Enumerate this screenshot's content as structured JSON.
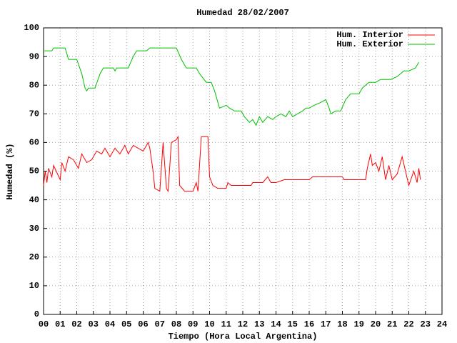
{
  "chart_data": {
    "type": "line",
    "title": "Humedad 28/02/2007",
    "x_label": "Tiempo (Hora Local Argentina)",
    "y_label": "Humedad (%)",
    "xlim": [
      0,
      24
    ],
    "ylim": [
      0,
      100
    ],
    "grid": true,
    "legend": "top-right",
    "xticks": [
      {
        "value": 0,
        "label": "00"
      },
      {
        "value": 1,
        "label": "01"
      },
      {
        "value": 2,
        "label": "02"
      },
      {
        "value": 3,
        "label": "03"
      },
      {
        "value": 4,
        "label": "04"
      },
      {
        "value": 5,
        "label": "05"
      },
      {
        "value": 6,
        "label": "06"
      },
      {
        "value": 7,
        "label": "07"
      },
      {
        "value": 8,
        "label": "08"
      },
      {
        "value": 9,
        "label": "09"
      },
      10,
      11,
      12,
      13,
      14,
      15,
      16,
      17,
      18,
      19,
      20,
      21,
      22,
      23,
      24
    ],
    "yticks": [
      0,
      10,
      20,
      30,
      40,
      50,
      60,
      70,
      80,
      90,
      100
    ],
    "series": [
      {
        "name": "Hum. Interior",
        "color": "#ff0000",
        "x": [
          0,
          0.1,
          0.2,
          0.3,
          0.5,
          0.6,
          1.0,
          1.1,
          1.3,
          1.5,
          1.8,
          2.1,
          2.3,
          2.6,
          2.9,
          3.2,
          3.5,
          3.7,
          4.0,
          4.3,
          4.6,
          4.9,
          5.1,
          5.4,
          5.7,
          6.0,
          6.3,
          6.4,
          6.6,
          6.7,
          7.0,
          7.2,
          7.4,
          7.5,
          7.7,
          8.0,
          8.1,
          8.2,
          8.5,
          9.0,
          9.2,
          9.3,
          9.5,
          9.9,
          10.0,
          10.2,
          10.5,
          11.0,
          11.1,
          11.3,
          12.5,
          12.6,
          13.2,
          13.5,
          13.7,
          14.0,
          14.5,
          16.0,
          16.2,
          18.0,
          18.1,
          19.4,
          19.5,
          19.7,
          19.8,
          20.0,
          20.2,
          20.4,
          20.6,
          20.8,
          21.0,
          21.3,
          21.6,
          22.0,
          22.3,
          22.5,
          22.6,
          22.7
        ],
        "values": [
          45,
          50,
          46,
          51,
          48,
          52,
          47,
          53,
          50,
          55,
          54,
          51,
          56,
          53,
          54,
          57,
          56,
          58,
          55,
          58,
          56,
          59,
          56,
          59,
          58,
          57,
          60,
          58,
          50,
          44,
          43,
          60,
          44,
          43,
          60,
          61,
          62,
          45,
          43,
          43,
          46,
          43,
          62,
          62,
          48,
          45,
          44,
          44,
          46,
          45,
          45,
          46,
          46,
          48,
          46,
          46,
          47,
          47,
          48,
          48,
          47,
          47,
          51,
          56,
          52,
          53,
          50,
          55,
          47,
          52,
          47,
          49,
          55,
          45,
          50,
          46,
          51,
          47
        ]
      },
      {
        "name": "Hum. Exterior",
        "color": "#00c000",
        "x": [
          0,
          0.5,
          0.6,
          1.3,
          1.5,
          2.0,
          2.3,
          2.5,
          2.6,
          2.7,
          3.1,
          3.4,
          3.6,
          4.2,
          4.3,
          4.4,
          5.1,
          5.4,
          5.6,
          6.2,
          6.4,
          8.0,
          8.3,
          8.5,
          8.6,
          9.2,
          9.4,
          9.8,
          10.1,
          10.3,
          10.6,
          11.0,
          11.2,
          11.5,
          11.9,
          12.1,
          12.4,
          12.6,
          12.8,
          13.0,
          13.2,
          13.5,
          13.8,
          14.0,
          14.3,
          14.6,
          14.8,
          15.0,
          15.3,
          15.6,
          15.8,
          16.0,
          16.3,
          16.7,
          17.0,
          17.2,
          17.3,
          17.6,
          17.9,
          18.2,
          18.5,
          19.0,
          19.2,
          19.6,
          20.0,
          20.3,
          20.9,
          21.3,
          21.7,
          22.0,
          22.4,
          22.6
        ],
        "values": [
          92,
          92,
          93,
          93,
          89,
          89,
          84,
          79,
          78,
          79,
          79,
          84,
          86,
          86,
          85,
          86,
          86,
          90,
          92,
          92,
          93,
          93,
          89,
          87,
          86,
          86,
          84,
          81,
          81,
          78,
          72,
          73,
          72,
          71,
          71,
          69,
          67,
          68,
          66,
          69,
          67,
          69,
          68,
          69,
          70,
          69,
          71,
          69,
          70,
          71,
          72,
          72,
          73,
          74,
          75,
          72,
          70,
          71,
          71,
          75,
          77,
          77,
          79,
          81,
          81,
          82,
          82,
          83,
          85,
          85,
          86,
          88
        ]
      }
    ]
  }
}
